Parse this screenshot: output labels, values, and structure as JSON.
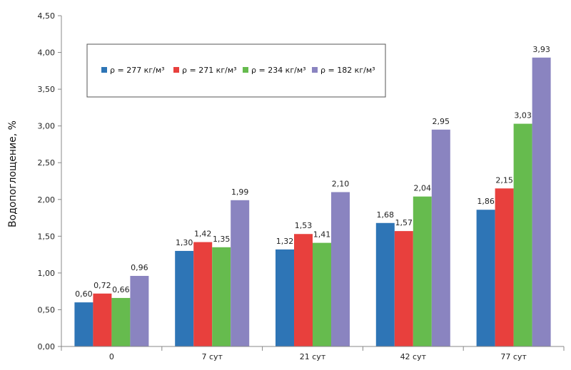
{
  "chart_data": {
    "type": "bar",
    "title": "",
    "xlabel": "",
    "ylabel": "Водопоглощение, %",
    "ylim": [
      0,
      4.5
    ],
    "yticks": [
      "0,00",
      "0,50",
      "1,00",
      "1,50",
      "2,00",
      "2,50",
      "3,00",
      "3,50",
      "4,00",
      "4,50"
    ],
    "categories": [
      "0",
      "7 сут",
      "21 сут",
      "42 сут",
      "77 сут"
    ],
    "legend_position": "top-left",
    "grid": false,
    "series": [
      {
        "name": "ρ = 277 кг/м³",
        "color": "#2e75b6",
        "values": [
          0.6,
          1.3,
          1.32,
          1.68,
          1.86
        ],
        "labels": [
          "0,60",
          "1,30",
          "1,32",
          "1,68",
          "1,86"
        ]
      },
      {
        "name": "ρ = 271 кг/м³",
        "color": "#e8403d",
        "values": [
          0.72,
          1.42,
          1.53,
          1.57,
          2.15
        ],
        "labels": [
          "0,72",
          "1,42",
          "1,53",
          "1,57",
          "2,15"
        ]
      },
      {
        "name": "ρ = 234 кг/м³",
        "color": "#66bb4e",
        "values": [
          0.66,
          1.35,
          1.41,
          2.04,
          3.03
        ],
        "labels": [
          "0,66",
          "1,35",
          "1,41",
          "2,04",
          "3,03"
        ]
      },
      {
        "name": "ρ = 182 кг/м³",
        "color": "#8a84c0",
        "values": [
          0.96,
          1.99,
          2.1,
          2.95,
          3.93
        ],
        "labels": [
          "0,96",
          "1,99",
          "2,10",
          "2,95",
          "3,93"
        ]
      }
    ]
  }
}
